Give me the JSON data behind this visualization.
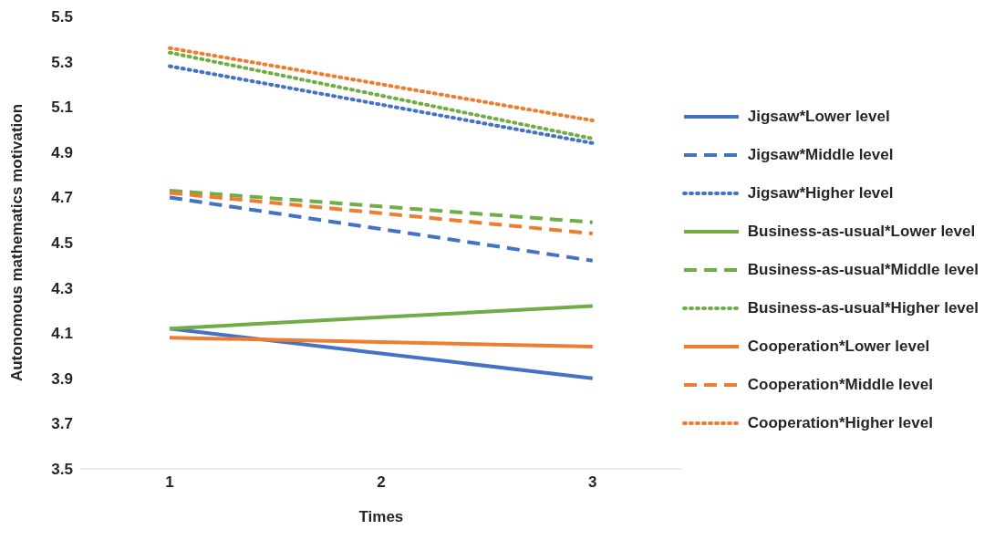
{
  "chart_data": {
    "type": "line",
    "xlabel": "Times",
    "ylabel": "Autonomous mathematics motivation",
    "categories": [
      "1",
      "2",
      "3"
    ],
    "ylim": [
      3.5,
      5.5
    ],
    "yticks": [
      3.5,
      3.7,
      3.9,
      4.1,
      4.3,
      4.5,
      4.7,
      4.9,
      5.1,
      5.3,
      5.5
    ],
    "grid": false,
    "legend": "right",
    "marker": "none",
    "series": [
      {
        "name": "Jigsaw*Lower level",
        "color": "#4472c4",
        "line_style": "solid",
        "values": [
          4.12,
          4.01,
          3.9
        ]
      },
      {
        "name": "Jigsaw*Middle level",
        "color": "#4472c4",
        "line_style": "dashed",
        "values": [
          4.7,
          4.56,
          4.42
        ]
      },
      {
        "name": "Jigsaw*Higher level",
        "color": "#4472c4",
        "line_style": "dotted",
        "values": [
          5.28,
          5.11,
          4.94
        ]
      },
      {
        "name": "Business-as-usual*Lower level",
        "color": "#70ad47",
        "line_style": "solid",
        "values": [
          4.12,
          4.17,
          4.22
        ]
      },
      {
        "name": "Business-as-usual*Middle level",
        "color": "#70ad47",
        "line_style": "dashed",
        "values": [
          4.73,
          4.66,
          4.59
        ]
      },
      {
        "name": "Business-as-usual*Higher level",
        "color": "#70ad47",
        "line_style": "dotted",
        "values": [
          5.34,
          5.15,
          4.96
        ]
      },
      {
        "name": "Cooperation*Lower level",
        "color": "#ed7d31",
        "line_style": "solid",
        "values": [
          4.08,
          4.06,
          4.04
        ]
      },
      {
        "name": "Cooperation*Middle level",
        "color": "#ed7d31",
        "line_style": "dashed",
        "values": [
          4.72,
          4.63,
          4.54
        ]
      },
      {
        "name": "Cooperation*Higher level",
        "color": "#ed7d31",
        "line_style": "dotted",
        "values": [
          5.36,
          5.2,
          5.04
        ]
      }
    ]
  }
}
